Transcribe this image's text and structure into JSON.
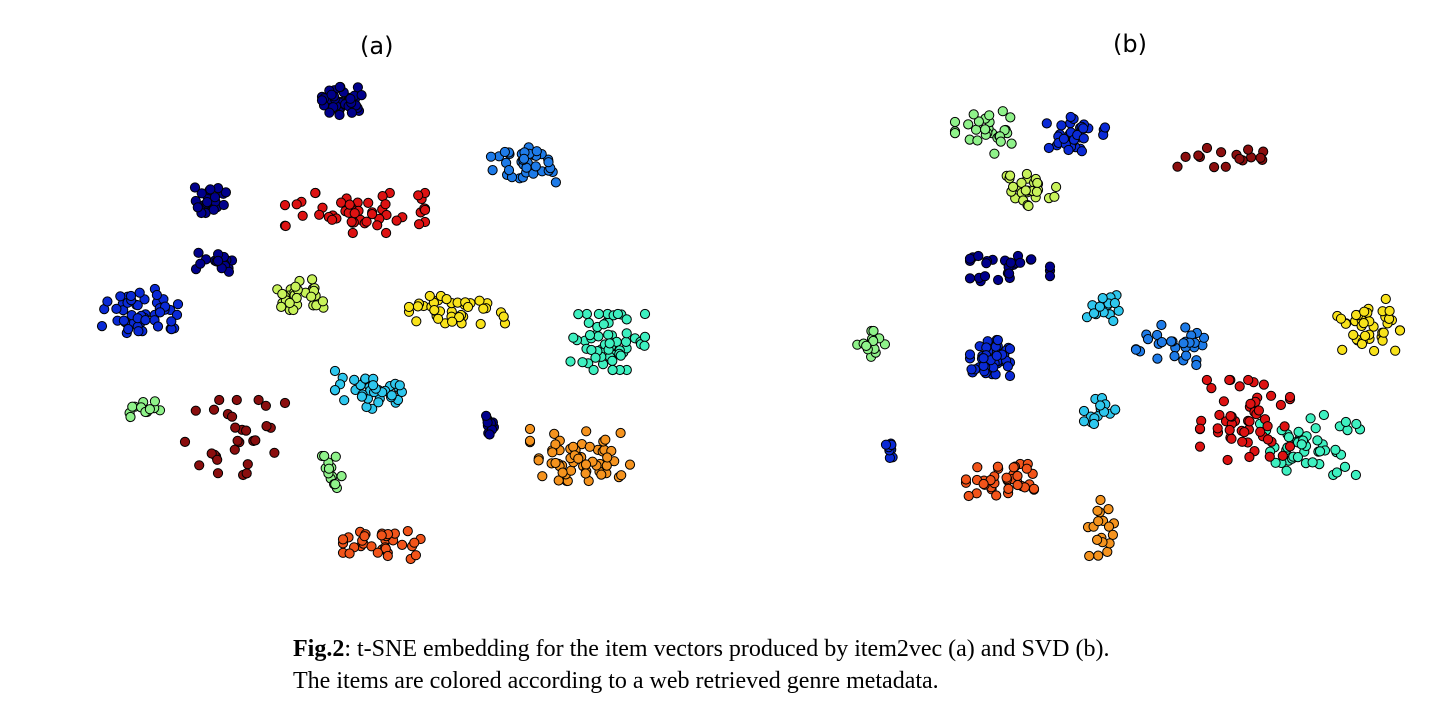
{
  "figure": {
    "caption_label": "Fig.2",
    "caption_line1": ": t-SNE embedding for the item vectors produced by item2vec (a) and SVD (b).",
    "caption_line2": "The items are colored according to a web retrieved genre metadata."
  },
  "colors": {
    "navy": "#00008b",
    "blue": "#0a2ad6",
    "azure": "#1e7be8",
    "cyan": "#2ec7ee",
    "aqua": "#3ef0c0",
    "light_green": "#8ff28a",
    "yellow_green": "#c8f25a",
    "yellow": "#f8e21a",
    "orange": "#f5931e",
    "red_orange": "#f2541a",
    "red": "#dd1212",
    "dark_red": "#8a0e0e"
  },
  "chart_data": [
    {
      "type": "scatter",
      "title": "(a)",
      "xlabel": "",
      "ylabel": "",
      "axes": "hidden",
      "clusters": [
        {
          "color": "navy",
          "center": [
            344,
            101
          ],
          "spread": [
            22,
            14
          ],
          "count": 40
        },
        {
          "color": "blue",
          "center": [
            140,
            311
          ],
          "spread": [
            38,
            22
          ],
          "count": 50
        },
        {
          "color": "navy",
          "center": [
            213,
            199
          ],
          "spread": [
            18,
            14
          ],
          "count": 22
        },
        {
          "color": "navy",
          "center": [
            214,
            262
          ],
          "spread": [
            18,
            12
          ],
          "count": 18
        },
        {
          "color": "azure",
          "center": [
            527,
            166
          ],
          "spread": [
            36,
            20
          ],
          "count": 40
        },
        {
          "color": "red",
          "center": [
            355,
            213
          ],
          "spread": [
            70,
            20
          ],
          "count": 55
        },
        {
          "color": "yellow",
          "center": [
            457,
            310
          ],
          "spread": [
            48,
            14
          ],
          "count": 40
        },
        {
          "color": "aqua",
          "center": [
            607,
            342
          ],
          "spread": [
            38,
            28
          ],
          "count": 60
        },
        {
          "color": "cyan",
          "center": [
            375,
            391
          ],
          "spread": [
            40,
            20
          ],
          "count": 40
        },
        {
          "color": "yellow_green",
          "center": [
            297,
            294
          ],
          "spread": [
            30,
            16
          ],
          "count": 30
        },
        {
          "color": "orange",
          "center": [
            580,
            455
          ],
          "spread": [
            50,
            26
          ],
          "count": 60
        },
        {
          "color": "red_orange",
          "center": [
            385,
            545
          ],
          "spread": [
            42,
            14
          ],
          "count": 34
        },
        {
          "color": "light_green",
          "center": [
            333,
            472
          ],
          "spread": [
            12,
            16
          ],
          "count": 14
        },
        {
          "color": "dark_red",
          "center": [
            235,
            440
          ],
          "spread": [
            50,
            40
          ],
          "count": 30
        },
        {
          "color": "light_green",
          "center": [
            140,
            405
          ],
          "spread": [
            20,
            12
          ],
          "count": 12
        },
        {
          "color": "navy",
          "center": [
            490,
            425
          ],
          "spread": [
            6,
            10
          ],
          "count": 10
        }
      ]
    },
    {
      "type": "scatter",
      "title": "(b)",
      "xlabel": "",
      "ylabel": "",
      "axes": "hidden",
      "clusters": [
        {
          "color": "blue",
          "center": [
            990,
            358
          ],
          "spread": [
            20,
            18
          ],
          "count": 50
        },
        {
          "color": "blue",
          "center": [
            1075,
            135
          ],
          "spread": [
            30,
            22
          ],
          "count": 40
        },
        {
          "color": "yellow_green",
          "center": [
            1030,
            190
          ],
          "spread": [
            30,
            16
          ],
          "count": 30
        },
        {
          "color": "light_green",
          "center": [
            985,
            130
          ],
          "spread": [
            30,
            24
          ],
          "count": 28
        },
        {
          "color": "navy",
          "center": [
            1010,
            270
          ],
          "spread": [
            40,
            14
          ],
          "count": 28
        },
        {
          "color": "yellow",
          "center": [
            1360,
            325
          ],
          "spread": [
            40,
            26
          ],
          "count": 40
        },
        {
          "color": "red_orange",
          "center": [
            1000,
            480
          ],
          "spread": [
            34,
            16
          ],
          "count": 40
        },
        {
          "color": "azure",
          "center": [
            1170,
            345
          ],
          "spread": [
            34,
            20
          ],
          "count": 30
        },
        {
          "color": "cyan",
          "center": [
            1105,
            305
          ],
          "spread": [
            18,
            16
          ],
          "count": 20
        },
        {
          "color": "cyan",
          "center": [
            1100,
            410
          ],
          "spread": [
            16,
            14
          ],
          "count": 16
        },
        {
          "color": "aqua",
          "center": [
            1310,
            445
          ],
          "spread": [
            50,
            30
          ],
          "count": 50
        },
        {
          "color": "red",
          "center": [
            1245,
            420
          ],
          "spread": [
            45,
            40
          ],
          "count": 55
        },
        {
          "color": "light_green",
          "center": [
            870,
            345
          ],
          "spread": [
            18,
            14
          ],
          "count": 16
        },
        {
          "color": "orange",
          "center": [
            1105,
            528
          ],
          "spread": [
            18,
            28
          ],
          "count": 18
        },
        {
          "color": "dark_red",
          "center": [
            1220,
            158
          ],
          "spread": [
            45,
            10
          ],
          "count": 16
        },
        {
          "color": "blue",
          "center": [
            890,
            448
          ],
          "spread": [
            4,
            12
          ],
          "count": 8
        }
      ]
    }
  ]
}
